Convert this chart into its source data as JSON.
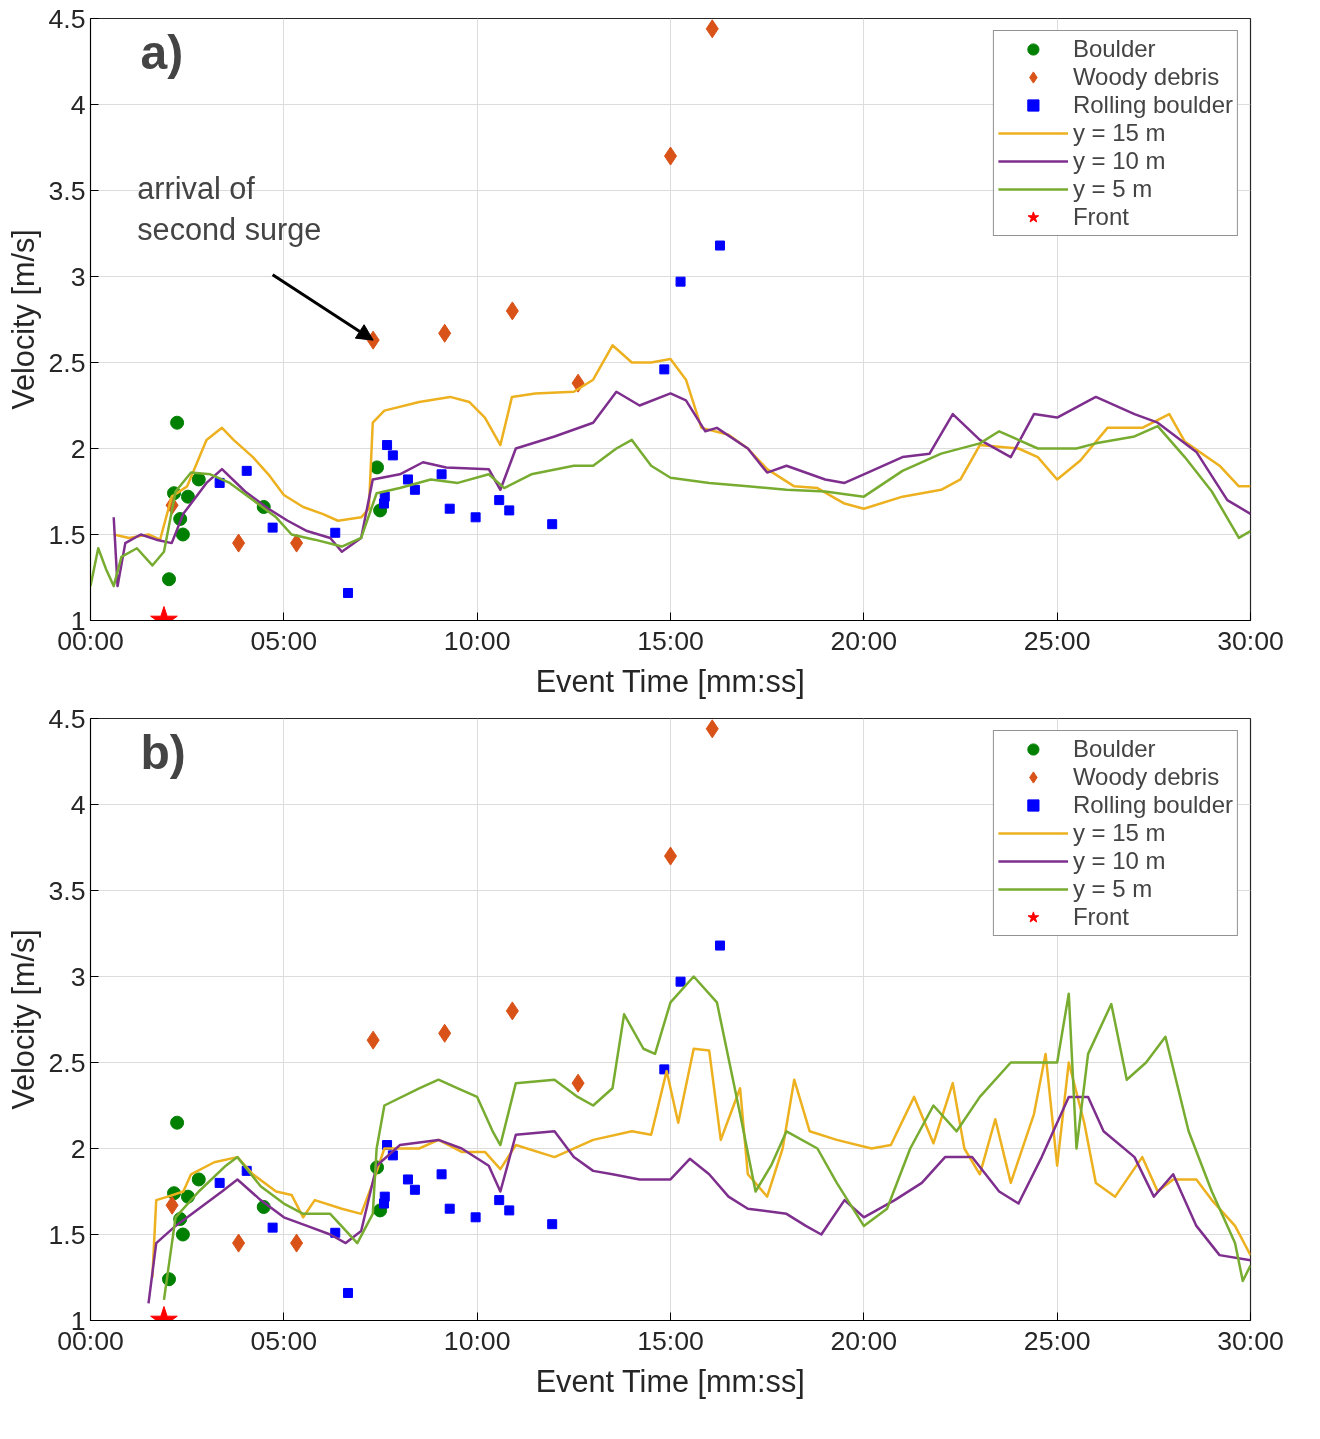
{
  "chart_data": [
    {
      "type": "line",
      "title": "a)",
      "xlabel": "Event Time [mm:ss]",
      "ylabel": "Velocity [m/s]",
      "xlim": [
        0,
        30
      ],
      "ylim": [
        1,
        4.5
      ],
      "xticks": [
        {
          "value": 0,
          "label": "00:00"
        },
        {
          "value": 5,
          "label": "05:00"
        },
        {
          "value": 10,
          "label": "10:00"
        },
        {
          "value": 15,
          "label": "15:00"
        },
        {
          "value": 20,
          "label": "20:00"
        },
        {
          "value": 25,
          "label": "25:00"
        },
        {
          "value": 30,
          "label": "30:00"
        }
      ],
      "yticks": [
        1,
        1.5,
        2,
        2.5,
        3,
        3.5,
        4,
        4.5
      ],
      "grid": true,
      "legend": "top right",
      "annotations": [
        {
          "text": "arrival of\nsecond surge",
          "x": 7.31,
          "y": 2.63
        }
      ],
      "series": [
        {
          "name": "Boulder",
          "type": "scatter",
          "marker": "circle",
          "color": "#008000",
          "x": [
            2.24,
            2.16,
            2.32,
            2.39,
            2.52,
            2.8,
            2.03,
            4.48,
            7.41,
            7.49
          ],
          "values": [
            2.15,
            1.74,
            1.59,
            1.5,
            1.72,
            1.82,
            1.24,
            1.66,
            1.89,
            1.64
          ]
        },
        {
          "name": "Woody debris",
          "type": "scatter",
          "marker": "diamond",
          "color": "#d95319",
          "x": [
            2.11,
            3.83,
            5.33,
            7.31,
            9.16,
            10.91,
            12.61,
            15.0,
            16.08
          ],
          "values": [
            1.67,
            1.45,
            1.45,
            2.63,
            2.67,
            2.8,
            2.38,
            3.7,
            4.44
          ]
        },
        {
          "name": "Rolling boulder",
          "type": "scatter",
          "marker": "square",
          "color": "#0000ff",
          "x": [
            3.34,
            4.04,
            4.71,
            6.33,
            6.66,
            7.59,
            7.67,
            7.82,
            7.61,
            8.21,
            8.39,
            9.08,
            9.29,
            9.96,
            10.57,
            10.83,
            11.94,
            14.84,
            15.26,
            16.28
          ],
          "values": [
            1.8,
            1.87,
            1.54,
            1.51,
            1.16,
            1.68,
            2.02,
            1.96,
            1.72,
            1.82,
            1.76,
            1.85,
            1.65,
            1.6,
            1.7,
            1.64,
            1.56,
            2.46,
            2.97,
            3.18
          ]
        },
        {
          "name": "y = 15 m",
          "color": "#edb120",
          "x": [
            0.6,
            1.0,
            1.5,
            1.8,
            2.1,
            2.5,
            3.0,
            3.4,
            3.7,
            4.2,
            4.6,
            5.0,
            5.5,
            6.0,
            6.4,
            7.0,
            7.2,
            7.3,
            7.6,
            8.5,
            9.3,
            9.8,
            10.2,
            10.6,
            10.9,
            11.5,
            12.5,
            13.0,
            13.5,
            14.0,
            14.5,
            15.0,
            15.4,
            15.8,
            16.5,
            17.0,
            17.5,
            18.2,
            18.8,
            19.5,
            20.0,
            21.0,
            22.0,
            22.5,
            23.0,
            24.0,
            24.5,
            25.0,
            25.6,
            26.3,
            27.2,
            27.9,
            28.3,
            29.2,
            29.7,
            30
          ],
          "values": [
            1.5,
            1.48,
            1.5,
            1.47,
            1.72,
            1.78,
            2.05,
            2.12,
            2.05,
            1.95,
            1.85,
            1.73,
            1.66,
            1.62,
            1.58,
            1.6,
            1.65,
            2.15,
            2.22,
            2.27,
            2.3,
            2.27,
            2.18,
            2.02,
            2.3,
            2.32,
            2.33,
            2.4,
            2.6,
            2.5,
            2.5,
            2.52,
            2.4,
            2.12,
            2.08,
            2.0,
            1.88,
            1.78,
            1.77,
            1.68,
            1.65,
            1.72,
            1.76,
            1.82,
            2.02,
            2.0,
            1.95,
            1.82,
            1.93,
            2.12,
            2.12,
            2.2,
            2.04,
            1.9,
            1.78,
            1.78
          ]
        },
        {
          "name": "y = 10 m",
          "color": "#7e2f8e",
          "x": [
            0.6,
            0.7,
            0.9,
            1.3,
            1.7,
            2.1,
            2.4,
            3.0,
            3.4,
            4.0,
            4.6,
            5.1,
            5.6,
            6.2,
            6.5,
            7.0,
            7.3,
            8.0,
            8.6,
            9.2,
            10.3,
            10.6,
            11.0,
            12.0,
            13.0,
            13.6,
            14.2,
            15.0,
            15.4,
            15.9,
            16.2,
            17.0,
            17.5,
            18.0,
            19.0,
            19.5,
            20.0,
            21.0,
            21.7,
            22.3,
            23.0,
            23.8,
            24.4,
            25.0,
            26.0,
            27.0,
            27.6,
            28.6,
            29.4,
            30
          ],
          "values": [
            1.6,
            1.2,
            1.45,
            1.5,
            1.47,
            1.45,
            1.62,
            1.8,
            1.88,
            1.75,
            1.65,
            1.58,
            1.52,
            1.48,
            1.4,
            1.48,
            1.82,
            1.85,
            1.92,
            1.89,
            1.88,
            1.76,
            2.0,
            2.07,
            2.15,
            2.33,
            2.25,
            2.32,
            2.28,
            2.1,
            2.12,
            2.0,
            1.86,
            1.9,
            1.82,
            1.8,
            1.85,
            1.95,
            1.97,
            2.2,
            2.05,
            1.95,
            2.2,
            2.18,
            2.3,
            2.2,
            2.15,
            1.98,
            1.7,
            1.62
          ]
        },
        {
          "name": "y = 5 m",
          "color": "#77ac30",
          "x": [
            0,
            0.2,
            0.4,
            0.6,
            0.8,
            1.2,
            1.6,
            1.9,
            2.2,
            2.6,
            3.1,
            3.6,
            4.2,
            4.8,
            5.2,
            5.8,
            6.5,
            7.0,
            7.4,
            8.0,
            8.8,
            9.5,
            10.3,
            10.7,
            11.4,
            12.5,
            13.0,
            13.6,
            14.0,
            14.5,
            15.0,
            16.0,
            17.0,
            18.0,
            19.0,
            20.0,
            21.0,
            22.0,
            23.0,
            23.5,
            24.5,
            25.5,
            26.0,
            27.0,
            27.6,
            28.3,
            29.0,
            29.7,
            30
          ],
          "values": [
            1.2,
            1.42,
            1.3,
            1.2,
            1.37,
            1.42,
            1.32,
            1.4,
            1.75,
            1.86,
            1.85,
            1.8,
            1.7,
            1.6,
            1.5,
            1.47,
            1.43,
            1.48,
            1.74,
            1.77,
            1.82,
            1.8,
            1.85,
            1.77,
            1.85,
            1.9,
            1.9,
            2.0,
            2.05,
            1.9,
            1.83,
            1.8,
            1.78,
            1.76,
            1.75,
            1.72,
            1.87,
            1.97,
            2.03,
            2.1,
            2.0,
            2.0,
            2.03,
            2.07,
            2.13,
            1.95,
            1.75,
            1.48,
            1.52
          ]
        },
        {
          "name": "Front",
          "type": "scatter",
          "marker": "star",
          "color": "#ff0000",
          "x": [
            1.9
          ],
          "values": [
            1.0
          ]
        }
      ]
    },
    {
      "type": "line",
      "title": "b)",
      "xlabel": "Event Time [mm:ss]",
      "ylabel": "Velocity [m/s]",
      "xlim": [
        0,
        30
      ],
      "ylim": [
        1,
        4.5
      ],
      "xticks": [
        {
          "value": 0,
          "label": "00:00"
        },
        {
          "value": 5,
          "label": "05:00"
        },
        {
          "value": 10,
          "label": "10:00"
        },
        {
          "value": 15,
          "label": "15:00"
        },
        {
          "value": 20,
          "label": "20:00"
        },
        {
          "value": 25,
          "label": "25:00"
        },
        {
          "value": 30,
          "label": "30:00"
        }
      ],
      "yticks": [
        1,
        1.5,
        2,
        2.5,
        3,
        3.5,
        4,
        4.5
      ],
      "grid": true,
      "legend": "top right",
      "series": [
        {
          "name": "Boulder",
          "type": "scatter",
          "marker": "circle",
          "color": "#008000",
          "x": [
            2.24,
            2.16,
            2.32,
            2.39,
            2.52,
            2.8,
            2.03,
            4.48,
            7.41,
            7.49
          ],
          "values": [
            2.15,
            1.74,
            1.59,
            1.5,
            1.72,
            1.82,
            1.24,
            1.66,
            1.89,
            1.64
          ]
        },
        {
          "name": "Woody debris",
          "type": "scatter",
          "marker": "diamond",
          "color": "#d95319",
          "x": [
            2.11,
            3.83,
            5.33,
            7.31,
            9.16,
            10.91,
            12.61,
            15.0,
            16.08
          ],
          "values": [
            1.67,
            1.45,
            1.45,
            2.63,
            2.67,
            2.8,
            2.38,
            3.7,
            4.44
          ]
        },
        {
          "name": "Rolling boulder",
          "type": "scatter",
          "marker": "square",
          "color": "#0000ff",
          "x": [
            3.34,
            4.04,
            4.71,
            6.33,
            6.66,
            7.59,
            7.67,
            7.82,
            7.61,
            8.21,
            8.39,
            9.08,
            9.29,
            9.96,
            10.57,
            10.83,
            11.94,
            14.84,
            15.26,
            16.28
          ],
          "values": [
            1.8,
            1.87,
            1.54,
            1.51,
            1.16,
            1.68,
            2.02,
            1.96,
            1.72,
            1.82,
            1.76,
            1.85,
            1.65,
            1.6,
            1.7,
            1.64,
            1.56,
            2.46,
            2.97,
            3.18
          ]
        },
        {
          "name": "y = 15 m",
          "color": "#edb120",
          "x": [
            1.6,
            1.7,
            2.0,
            2.4,
            2.6,
            3.2,
            3.8,
            4.2,
            4.8,
            5.2,
            5.5,
            5.8,
            6.5,
            7.0,
            7.3,
            7.6,
            8.5,
            9.0,
            9.6,
            10.2,
            10.6,
            11.0,
            12.0,
            13.0,
            14.0,
            14.5,
            14.9,
            15.2,
            15.6,
            16.0,
            16.3,
            16.8,
            17.0,
            17.5,
            17.9,
            18.2,
            18.6,
            19.3,
            20.2,
            20.7,
            21.3,
            21.8,
            22.3,
            22.6,
            23.0,
            23.4,
            23.8,
            24.4,
            24.7,
            25.0,
            25.3,
            25.7,
            26.0,
            26.5,
            27.2,
            27.6,
            28.0,
            28.6,
            29.0,
            29.6,
            30
          ],
          "values": [
            1.25,
            1.7,
            1.72,
            1.75,
            1.85,
            1.92,
            1.95,
            1.85,
            1.75,
            1.73,
            1.6,
            1.7,
            1.65,
            1.62,
            1.8,
            2.0,
            2.0,
            2.05,
            1.98,
            1.98,
            1.88,
            2.02,
            1.95,
            2.05,
            2.1,
            2.08,
            2.45,
            2.15,
            2.58,
            2.57,
            2.05,
            2.35,
            1.85,
            1.72,
            2.0,
            2.4,
            2.1,
            2.05,
            2.0,
            2.02,
            2.3,
            2.03,
            2.38,
            2.0,
            1.85,
            2.17,
            1.8,
            2.2,
            2.55,
            1.9,
            2.5,
            2.15,
            1.8,
            1.72,
            1.95,
            1.75,
            1.82,
            1.82,
            1.7,
            1.55,
            1.38
          ]
        },
        {
          "name": "y = 10 m",
          "color": "#7e2f8e",
          "x": [
            1.5,
            1.7,
            2.2,
            2.8,
            3.4,
            3.8,
            4.4,
            5.0,
            5.6,
            6.2,
            6.6,
            7.0,
            7.4,
            8.0,
            9.0,
            9.6,
            10.3,
            10.6,
            11.0,
            12.0,
            12.5,
            13.0,
            13.5,
            14.2,
            15.0,
            15.5,
            16.0,
            16.5,
            17.0,
            18.0,
            18.5,
            18.9,
            19.5,
            20.0,
            20.8,
            21.5,
            22.1,
            22.8,
            23.5,
            24.0,
            24.6,
            25.3,
            25.8,
            26.2,
            27.0,
            27.5,
            28.0,
            28.6,
            29.2,
            30
          ],
          "values": [
            1.1,
            1.45,
            1.55,
            1.65,
            1.75,
            1.82,
            1.7,
            1.6,
            1.55,
            1.5,
            1.45,
            1.52,
            1.9,
            2.02,
            2.05,
            2.0,
            1.9,
            1.75,
            2.08,
            2.1,
            1.95,
            1.87,
            1.85,
            1.82,
            1.82,
            1.94,
            1.85,
            1.72,
            1.65,
            1.62,
            1.55,
            1.5,
            1.7,
            1.6,
            1.7,
            1.8,
            1.95,
            1.95,
            1.75,
            1.68,
            1.95,
            2.3,
            2.3,
            2.1,
            1.95,
            1.72,
            1.85,
            1.55,
            1.38,
            1.35
          ]
        },
        {
          "name": "y = 5 m",
          "color": "#77ac30",
          "x": [
            1.9,
            2.2,
            2.8,
            3.5,
            3.8,
            4.4,
            5.0,
            5.5,
            6.2,
            6.9,
            7.3,
            7.4,
            7.6,
            8.5,
            9.0,
            9.5,
            10.0,
            10.4,
            10.6,
            11.0,
            12.0,
            12.6,
            13.0,
            13.5,
            13.8,
            14.3,
            14.6,
            15.0,
            15.6,
            16.2,
            16.8,
            17.2,
            17.6,
            18.0,
            18.8,
            19.3,
            20.0,
            20.6,
            21.2,
            21.8,
            22.4,
            23.0,
            23.8,
            24.4,
            25.0,
            25.3,
            25.5,
            25.8,
            26.4,
            26.8,
            27.3,
            27.8,
            28.4,
            29.0,
            29.6,
            29.8,
            30
          ],
          "values": [
            1.12,
            1.6,
            1.75,
            1.9,
            1.95,
            1.78,
            1.68,
            1.62,
            1.62,
            1.45,
            1.62,
            2.0,
            2.25,
            2.35,
            2.4,
            2.35,
            2.3,
            2.1,
            2.02,
            2.38,
            2.4,
            2.3,
            2.25,
            2.35,
            2.78,
            2.58,
            2.55,
            2.85,
            3.0,
            2.85,
            2.2,
            1.75,
            1.9,
            2.1,
            2.0,
            1.8,
            1.55,
            1.65,
            2.0,
            2.25,
            2.1,
            2.3,
            2.5,
            2.5,
            2.5,
            2.9,
            2.0,
            2.55,
            2.84,
            2.4,
            2.5,
            2.65,
            2.1,
            1.75,
            1.45,
            1.23,
            1.32
          ]
        },
        {
          "name": "Front",
          "type": "scatter",
          "marker": "star",
          "color": "#ff0000",
          "x": [
            1.9
          ],
          "values": [
            1.0
          ]
        }
      ]
    }
  ]
}
